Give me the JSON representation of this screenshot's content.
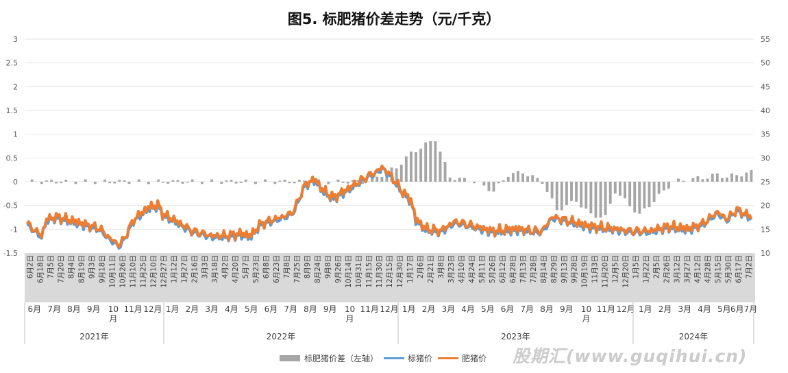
{
  "chart_data": {
    "type": "line",
    "title": "图5. 标肥猪价差走势（元/千克）",
    "left_axis": {
      "ylim": [
        -1.5,
        3
      ],
      "ticks": [
        "3",
        "2.5",
        "2",
        "1.5",
        "1",
        "0.5",
        "0",
        "-0.5",
        "-1",
        "-1.5"
      ]
    },
    "right_axis": {
      "ylim": [
        10,
        55
      ],
      "ticks": [
        "55",
        "50",
        "45",
        "40",
        "35",
        "30",
        "25",
        "20",
        "15",
        "10"
      ]
    },
    "years": [
      "2021年",
      "2022年",
      "2023年",
      "2024年"
    ],
    "months": [
      "6月",
      "7月",
      "8月",
      "9月",
      "10\n月",
      "11月",
      "12月",
      "1月",
      "2月",
      "3月",
      "4月",
      "5月",
      "6月",
      "7月",
      "8月",
      "9月",
      "10\n月",
      "11月",
      "12月",
      "1月",
      "2月",
      "3月",
      "4月",
      "5月",
      "6月",
      "7月",
      "8月",
      "9月",
      "10\n月",
      "11月",
      "12月",
      "1月",
      "2月",
      "3月",
      "4月",
      "5月",
      "6月7月"
    ],
    "date_labels": [
      "6月2日",
      "6月18日",
      "7月5日",
      "7月20日",
      "8月4日",
      "8月19日",
      "9月3日",
      "9月18日",
      "10月11日",
      "10月26日",
      "11月10日",
      "11月25日",
      "12月10日",
      "12月27日",
      "1月12日",
      "1月27日",
      "2月16日",
      "3月3日",
      "3月18日",
      "4月2日",
      "4月20日",
      "5月7日",
      "5月23日",
      "6月8日",
      "6月23日",
      "7月8日",
      "7月25日",
      "8月9日",
      "8月24日",
      "9月8日",
      "9月26日",
      "10月14日",
      "10月31日",
      "11月15日",
      "11月30日",
      "12月15日",
      "12月30日",
      "1月17日",
      "2月6日",
      "2月21日",
      "3月8日",
      "3月23日",
      "4月10日",
      "4月24日",
      "5月11日",
      "5月26日",
      "6月12日",
      "6月28日",
      "7月13日",
      "7月28日",
      "8月14日",
      "8月29日",
      "9月13日",
      "9月28日",
      "10月19日",
      "11月3日",
      "11月20日",
      "12月5日",
      "12月20日",
      "1月5日",
      "1月22日",
      "2月5日",
      "2月26日",
      "3月12日",
      "3月27日",
      "4月12日",
      "4月28日",
      "5月15日",
      "5月30日",
      "6月17日",
      "7月2日"
    ],
    "spread_keyframes": [
      [
        0,
        0
      ],
      [
        70,
        0
      ],
      [
        76,
        0.3
      ],
      [
        79,
        0.6
      ],
      [
        84,
        0.9
      ],
      [
        87,
        0.1
      ],
      [
        92,
        0
      ],
      [
        96,
        -0.2
      ],
      [
        99,
        0.15
      ],
      [
        102,
        0.2
      ],
      [
        106,
        0
      ],
      [
        109,
        -0.6
      ],
      [
        113,
        -0.4
      ],
      [
        116,
        -0.7
      ],
      [
        119,
        -0.75
      ],
      [
        121,
        -0.2
      ],
      [
        122,
        -0.3
      ],
      [
        126,
        -0.7
      ],
      [
        129,
        -0.4
      ],
      [
        133,
        0
      ],
      [
        140,
        0.1
      ],
      [
        142,
        0.15
      ],
      [
        144,
        0.1
      ],
      [
        149,
        0.2
      ]
    ],
    "price_keyframes": [
      [
        0,
        16
      ],
      [
        3,
        13.5
      ],
      [
        4,
        17
      ],
      [
        6,
        17.5
      ],
      [
        10,
        16.5
      ],
      [
        15,
        15
      ],
      [
        17,
        13
      ],
      [
        19,
        11.5
      ],
      [
        20,
        13
      ],
      [
        22,
        17
      ],
      [
        25,
        19.5
      ],
      [
        27,
        20
      ],
      [
        28,
        18
      ],
      [
        30,
        17
      ],
      [
        34,
        14.5
      ],
      [
        38,
        13.5
      ],
      [
        41,
        13.5
      ],
      [
        44,
        14
      ],
      [
        46,
        13.5
      ],
      [
        48,
        16
      ],
      [
        51,
        17
      ],
      [
        54,
        18
      ],
      [
        55,
        19
      ],
      [
        57,
        24
      ],
      [
        59,
        25.5
      ],
      [
        61,
        23
      ],
      [
        63,
        21.5
      ],
      [
        67,
        24
      ],
      [
        70,
        26
      ],
      [
        72,
        27
      ],
      [
        73,
        28
      ],
      [
        75,
        26
      ],
      [
        77,
        23
      ],
      [
        79,
        21
      ],
      [
        80,
        17
      ],
      [
        82,
        15
      ],
      [
        85,
        14.5
      ],
      [
        88,
        16.5
      ],
      [
        92,
        15.5
      ],
      [
        96,
        14.5
      ],
      [
        101,
        15
      ],
      [
        104,
        14.5
      ],
      [
        106,
        14.5
      ],
      [
        108,
        17.5
      ],
      [
        112,
        16.5
      ],
      [
        116,
        15.5
      ],
      [
        121,
        15
      ],
      [
        124,
        14.5
      ],
      [
        128,
        14.5
      ],
      [
        132,
        15.5
      ],
      [
        136,
        15
      ],
      [
        139,
        16
      ],
      [
        142,
        18.5
      ],
      [
        144,
        17
      ],
      [
        146,
        19
      ],
      [
        149,
        17.5
      ]
    ],
    "series": [
      {
        "name": "标肥猪价差（左轴）",
        "type": "bar",
        "axis": "left",
        "color": "#a6a6a6"
      },
      {
        "name": "标猪价",
        "type": "line",
        "axis": "right",
        "color": "#5b9bd5"
      },
      {
        "name": "肥猪价",
        "type": "line",
        "axis": "right",
        "color": "#ed7d31"
      }
    ]
  },
  "legend": {
    "spread": "标肥猪价差（左轴）",
    "standard": "标猪价",
    "fat": "肥猪价"
  },
  "watermark": "股期汇(www.guqihui.cn)"
}
